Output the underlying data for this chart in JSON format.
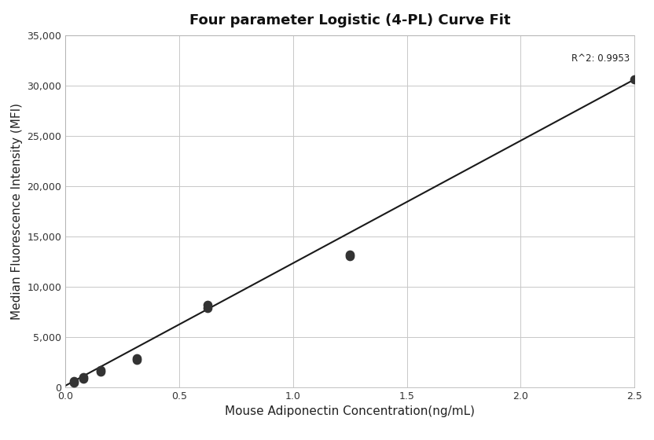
{
  "title": "Four parameter Logistic (4-PL) Curve Fit",
  "xlabel": "Mouse Adiponectin Concentration(ng/mL)",
  "ylabel": "Median Fluorescence Intensity (MFI)",
  "scatter_x": [
    0.039,
    0.039,
    0.078,
    0.078,
    0.156,
    0.156,
    0.313,
    0.313,
    0.625,
    0.625,
    1.25,
    1.25,
    2.5
  ],
  "scatter_y": [
    450,
    600,
    850,
    1000,
    1550,
    1700,
    2700,
    2900,
    7900,
    8200,
    13000,
    13200,
    30600
  ],
  "line_x": [
    0.0,
    2.5
  ],
  "line_y": [
    150,
    30600
  ],
  "xlim": [
    0,
    2.5
  ],
  "ylim": [
    0,
    35000
  ],
  "xticks": [
    0,
    0.5,
    1.0,
    1.5,
    2.0,
    2.5
  ],
  "yticks": [
    0,
    5000,
    10000,
    15000,
    20000,
    25000,
    30000,
    35000
  ],
  "r2_text": "R^2: 0.9953",
  "r2_x": 2.48,
  "r2_y": 32200,
  "marker_color": "#333333",
  "marker_size": 55,
  "line_color": "#1a1a1a",
  "line_width": 1.5,
  "grid_color": "#c8c8c8",
  "bg_color": "#ffffff",
  "title_fontsize": 13,
  "label_fontsize": 11,
  "tick_fontsize": 9,
  "annotation_fontsize": 8.5
}
